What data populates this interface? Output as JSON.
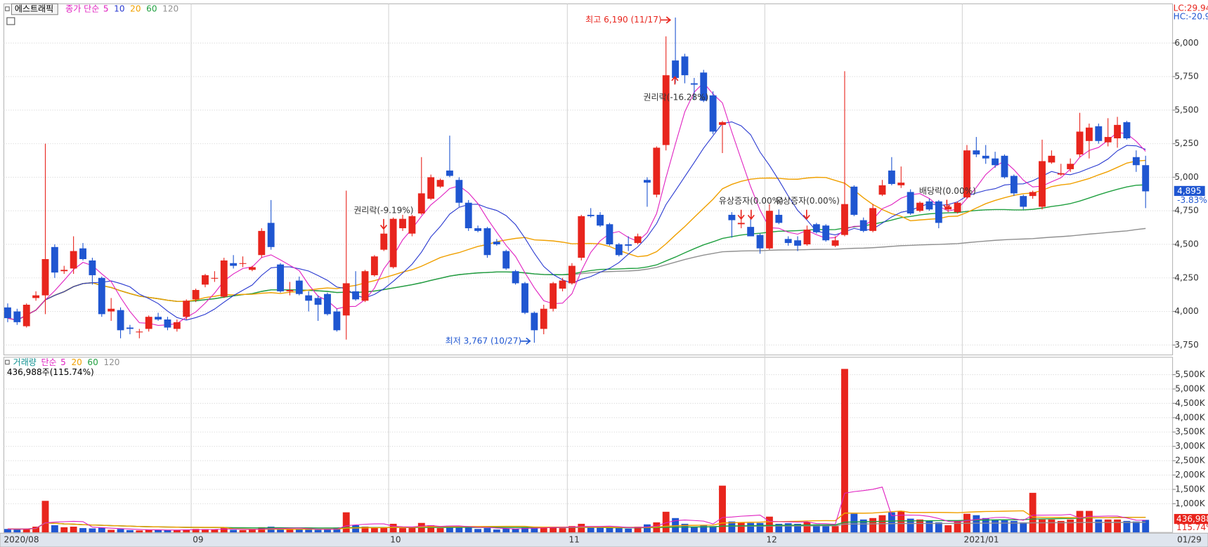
{
  "chart_data": [
    {
      "type": "candlestick",
      "title": "에스트래픽",
      "legend_title": "종가 단순",
      "moving_averages": [
        {
          "period": 5,
          "color": "#e020c0"
        },
        {
          "period": 10,
          "color": "#2838d0"
        },
        {
          "period": 20,
          "color": "#f0a000"
        },
        {
          "period": 60,
          "color": "#20a040"
        },
        {
          "period": 120,
          "color": "#909090"
        }
      ],
      "x": [
        "2020/08",
        null,
        null,
        null,
        null,
        null,
        null,
        null,
        null,
        null,
        null,
        null,
        null,
        null,
        null,
        null,
        null,
        null,
        null,
        null,
        "09",
        null,
        null,
        null,
        null,
        null,
        null,
        null,
        null,
        null,
        null,
        null,
        null,
        null,
        null,
        null,
        null,
        null,
        null,
        null,
        null,
        "10",
        null,
        null,
        null,
        null,
        null,
        null,
        null,
        null,
        null,
        null,
        null,
        null,
        null,
        null,
        null,
        null,
        null,
        null,
        "11",
        null,
        null,
        null,
        null,
        null,
        null,
        null,
        null,
        null,
        null,
        null,
        null,
        null,
        null,
        null,
        null,
        null,
        null,
        null,
        null,
        "12",
        null,
        null,
        null,
        null,
        null,
        null,
        null,
        null,
        null,
        null,
        null,
        null,
        null,
        null,
        null,
        null,
        null,
        null,
        null,
        null,
        "2021/01",
        null,
        null,
        null,
        null,
        null,
        null,
        null,
        null,
        null,
        null,
        null,
        null,
        null,
        null,
        null,
        null,
        null,
        null,
        "01/29"
      ],
      "ohlc": [
        [
          4030,
          4060,
          3920,
          3950
        ],
        [
          4000,
          4020,
          3900,
          3920
        ],
        [
          3890,
          4060,
          3880,
          4050
        ],
        [
          4100,
          4150,
          4080,
          4120
        ],
        [
          4120,
          5250,
          3980,
          4390
        ],
        [
          4480,
          4500,
          4250,
          4290
        ],
        [
          4300,
          4340,
          4280,
          4310
        ],
        [
          4320,
          4560,
          4280,
          4450
        ],
        [
          4470,
          4510,
          4380,
          4390
        ],
        [
          4380,
          4400,
          4200,
          4270
        ],
        [
          4250,
          4260,
          3960,
          3980
        ],
        [
          4000,
          4100,
          3930,
          4020
        ],
        [
          4010,
          4030,
          3800,
          3860
        ],
        [
          3880,
          3900,
          3830,
          3870
        ],
        [
          3850,
          3870,
          3800,
          3850
        ],
        [
          3870,
          3970,
          3850,
          3960
        ],
        [
          3960,
          3990,
          3930,
          3940
        ],
        [
          3940,
          3960,
          3860,
          3880
        ],
        [
          3870,
          3940,
          3850,
          3920
        ],
        [
          3960,
          4090,
          3940,
          4080
        ],
        [
          4090,
          4170,
          4070,
          4160
        ],
        [
          4200,
          4280,
          4180,
          4270
        ],
        [
          4250,
          4300,
          4220,
          4250
        ],
        [
          4110,
          4400,
          4100,
          4380
        ],
        [
          4360,
          4420,
          4320,
          4340
        ],
        [
          4360,
          4410,
          4330,
          4360
        ],
        [
          4310,
          4340,
          4300,
          4330
        ],
        [
          4420,
          4620,
          4400,
          4600
        ],
        [
          4660,
          4830,
          4460,
          4480
        ],
        [
          4350,
          4360,
          4140,
          4150
        ],
        [
          4150,
          4220,
          4120,
          4160
        ],
        [
          4230,
          4260,
          4120,
          4130
        ],
        [
          4120,
          4150,
          4000,
          4080
        ],
        [
          4100,
          4120,
          3930,
          4050
        ],
        [
          4130,
          4140,
          3970,
          3980
        ],
        [
          4000,
          4020,
          3850,
          3860
        ],
        [
          3970,
          4900,
          3790,
          4210
        ],
        [
          4150,
          4300,
          4080,
          4090
        ],
        [
          4080,
          4310,
          4070,
          4300
        ],
        [
          4270,
          4420,
          4260,
          4410
        ],
        [
          4460,
          4610,
          4450,
          4580
        ],
        [
          4330,
          4700,
          4320,
          4690
        ],
        [
          4620,
          4720,
          4600,
          4690
        ],
        [
          4580,
          4720,
          4560,
          4710
        ],
        [
          4730,
          5150,
          4720,
          4880
        ],
        [
          4840,
          5020,
          4830,
          5000
        ],
        [
          4930,
          4990,
          4920,
          4980
        ],
        [
          5050,
          5310,
          5000,
          5010
        ],
        [
          4980,
          5000,
          4780,
          4810
        ],
        [
          4810,
          4830,
          4600,
          4620
        ],
        [
          4620,
          4640,
          4590,
          4600
        ],
        [
          4620,
          4630,
          4400,
          4420
        ],
        [
          4520,
          4540,
          4490,
          4500
        ],
        [
          4450,
          4460,
          4310,
          4320
        ],
        [
          4300,
          4310,
          4200,
          4210
        ],
        [
          4210,
          4220,
          3980,
          3990
        ],
        [
          3990,
          4000,
          3767,
          3860
        ],
        [
          3870,
          4050,
          3830,
          4020
        ],
        [
          4020,
          4220,
          4000,
          4210
        ],
        [
          4170,
          4250,
          4150,
          4230
        ],
        [
          4210,
          4360,
          4200,
          4340
        ],
        [
          4400,
          4720,
          4380,
          4710
        ],
        [
          4720,
          4770,
          4700,
          4710
        ],
        [
          4720,
          4740,
          4630,
          4640
        ],
        [
          4650,
          4660,
          4490,
          4500
        ],
        [
          4500,
          4510,
          4410,
          4420
        ],
        [
          4500,
          4560,
          4450,
          4490
        ],
        [
          4510,
          4580,
          4500,
          4560
        ],
        [
          4980,
          5000,
          4780,
          4960
        ],
        [
          4870,
          5230,
          4850,
          5220
        ],
        [
          5240,
          6050,
          5200,
          5760
        ],
        [
          5870,
          6190,
          5700,
          5740
        ],
        [
          5900,
          5920,
          5700,
          5760
        ],
        [
          5700,
          5740,
          5580,
          5690
        ],
        [
          5780,
          5800,
          5560,
          5570
        ],
        [
          5610,
          5640,
          5320,
          5340
        ],
        [
          5390,
          5420,
          5180,
          5410
        ],
        [
          4720,
          4740,
          4550,
          4680
        ],
        [
          4650,
          4700,
          4620,
          4660
        ],
        [
          4630,
          4700,
          4560,
          4560
        ],
        [
          4570,
          4580,
          4430,
          4470
        ],
        [
          4470,
          4800,
          4460,
          4750
        ],
        [
          4720,
          4760,
          4650,
          4660
        ],
        [
          4540,
          4560,
          4490,
          4510
        ],
        [
          4530,
          4560,
          4450,
          4490
        ],
        [
          4500,
          4640,
          4490,
          4610
        ],
        [
          4650,
          4660,
          4580,
          4590
        ],
        [
          4640,
          4650,
          4520,
          4530
        ],
        [
          4490,
          4560,
          4480,
          4530
        ],
        [
          4570,
          5790,
          4560,
          4800
        ],
        [
          4930,
          4940,
          4710,
          4720
        ],
        [
          4680,
          4700,
          4590,
          4600
        ],
        [
          4600,
          4800,
          4590,
          4770
        ],
        [
          4870,
          4980,
          4860,
          4940
        ],
        [
          5050,
          5150,
          4940,
          4950
        ],
        [
          4940,
          5080,
          4920,
          4960
        ],
        [
          4890,
          4910,
          4720,
          4730
        ],
        [
          4750,
          4820,
          4740,
          4810
        ],
        [
          4820,
          4840,
          4750,
          4760
        ],
        [
          4820,
          4830,
          4620,
          4660
        ],
        [
          4760,
          4800,
          4740,
          4780
        ],
        [
          4740,
          4820,
          4730,
          4810
        ],
        [
          4850,
          5240,
          4840,
          5200
        ],
        [
          5200,
          5300,
          5150,
          5170
        ],
        [
          5160,
          5240,
          5100,
          5140
        ],
        [
          5140,
          5190,
          5070,
          5090
        ],
        [
          5160,
          5170,
          4990,
          5000
        ],
        [
          5010,
          5020,
          4860,
          4880
        ],
        [
          4860,
          4870,
          4760,
          4780
        ],
        [
          4860,
          4900,
          4840,
          4890
        ],
        [
          4780,
          5280,
          4760,
          5120
        ],
        [
          5110,
          5200,
          5100,
          5160
        ],
        [
          5020,
          5100,
          5010,
          5030
        ],
        [
          5060,
          5140,
          5040,
          5100
        ],
        [
          5170,
          5480,
          5150,
          5340
        ],
        [
          5270,
          5400,
          5140,
          5370
        ],
        [
          5380,
          5400,
          5250,
          5270
        ],
        [
          5260,
          5440,
          5230,
          5300
        ],
        [
          5290,
          5450,
          5220,
          5390
        ],
        [
          5410,
          5420,
          5280,
          5290
        ],
        [
          5150,
          5200,
          5040,
          5090
        ],
        [
          5090,
          5160,
          4770,
          4895
        ]
      ],
      "up_color": "#e8251d",
      "down_color": "#1f56d1",
      "ylim": [
        3676,
        6292
      ],
      "yticks": [
        {
          "value": 3750,
          "label": "3,750"
        },
        {
          "value": 4000,
          "label": "4,000"
        },
        {
          "value": 4250,
          "label": "4,250"
        },
        {
          "value": 4500,
          "label": "4,500"
        },
        {
          "value": 4750,
          "label": "4,750"
        },
        {
          "value": 5000,
          "label": "5,000"
        },
        {
          "value": 5250,
          "label": "5,250"
        },
        {
          "value": 5500,
          "label": "5,500"
        },
        {
          "value": 5750,
          "label": "5,750"
        },
        {
          "value": 6000,
          "label": "6,000"
        }
      ],
      "grid": true,
      "last_label": "4,895",
      "last_change": "-3.83%",
      "lc": "LC:29.94",
      "hc": "HC:-20.9",
      "annotations": [
        "최고 6,190 (11/17)",
        "최저 3,767 (10/27)",
        "권리락(-9.19%)",
        "권리락(-16.28%)",
        "유상증자(0.00%)",
        "유상증자(0.00%)",
        "배당락(0.00%)"
      ]
    },
    {
      "type": "bar",
      "title": "거래량",
      "title_color": "#109090",
      "legend_title": "단순",
      "moving_averages": [
        {
          "period": 5,
          "color": "#e020c0"
        },
        {
          "period": 20,
          "color": "#f0a000"
        },
        {
          "period": 60,
          "color": "#20a040"
        },
        {
          "period": 120,
          "color": "#909090"
        }
      ],
      "values": [
        120000,
        110000,
        130000,
        200000,
        1100000,
        250000,
        180000,
        200000,
        150000,
        140000,
        160000,
        90000,
        120000,
        80000,
        70000,
        90000,
        80000,
        90000,
        80000,
        100000,
        120000,
        110000,
        100000,
        150000,
        90000,
        80000,
        90000,
        180000,
        200000,
        150000,
        100000,
        120000,
        100000,
        90000,
        120000,
        150000,
        700000,
        250000,
        200000,
        180000,
        160000,
        300000,
        150000,
        160000,
        330000,
        250000,
        150000,
        230000,
        180000,
        200000,
        120000,
        150000,
        100000,
        130000,
        120000,
        180000,
        200000,
        160000,
        200000,
        150000,
        220000,
        300000,
        180000,
        200000,
        180000,
        150000,
        130000,
        200000,
        280000,
        350000,
        720000,
        500000,
        300000,
        200000,
        250000,
        220000,
        1630000,
        380000,
        350000,
        330000,
        330000,
        550000,
        300000,
        320000,
        300000,
        360000,
        280000,
        260000,
        220000,
        5700000,
        650000,
        450000,
        500000,
        600000,
        700000,
        750000,
        480000,
        450000,
        400000,
        350000,
        250000,
        400000,
        650000,
        600000,
        500000,
        450000,
        420000,
        400000,
        350000,
        1380000,
        450000,
        450000,
        400000,
        450000,
        750000,
        750000,
        450000,
        450000,
        450000,
        400000,
        380000,
        436988
      ],
      "ylim": [
        0,
        6000000
      ],
      "yticks": [
        {
          "value": 1000000,
          "label": "1,000K"
        },
        {
          "value": 1500000,
          "label": "1,500K"
        },
        {
          "value": 2000000,
          "label": "2,000K"
        },
        {
          "value": 2500000,
          "label": "2,500K"
        },
        {
          "value": 3000000,
          "label": "3,000K"
        },
        {
          "value": 3500000,
          "label": "3,500K"
        },
        {
          "value": 4000000,
          "label": "4,000K"
        },
        {
          "value": 4500000,
          "label": "4,500K"
        },
        {
          "value": 5000000,
          "label": "5,000K"
        },
        {
          "value": 5500000,
          "label": "5,500K"
        }
      ],
      "summary": "436,988주(115.74%)",
      "last_label": "436,988",
      "last_change": "115.74%"
    }
  ]
}
